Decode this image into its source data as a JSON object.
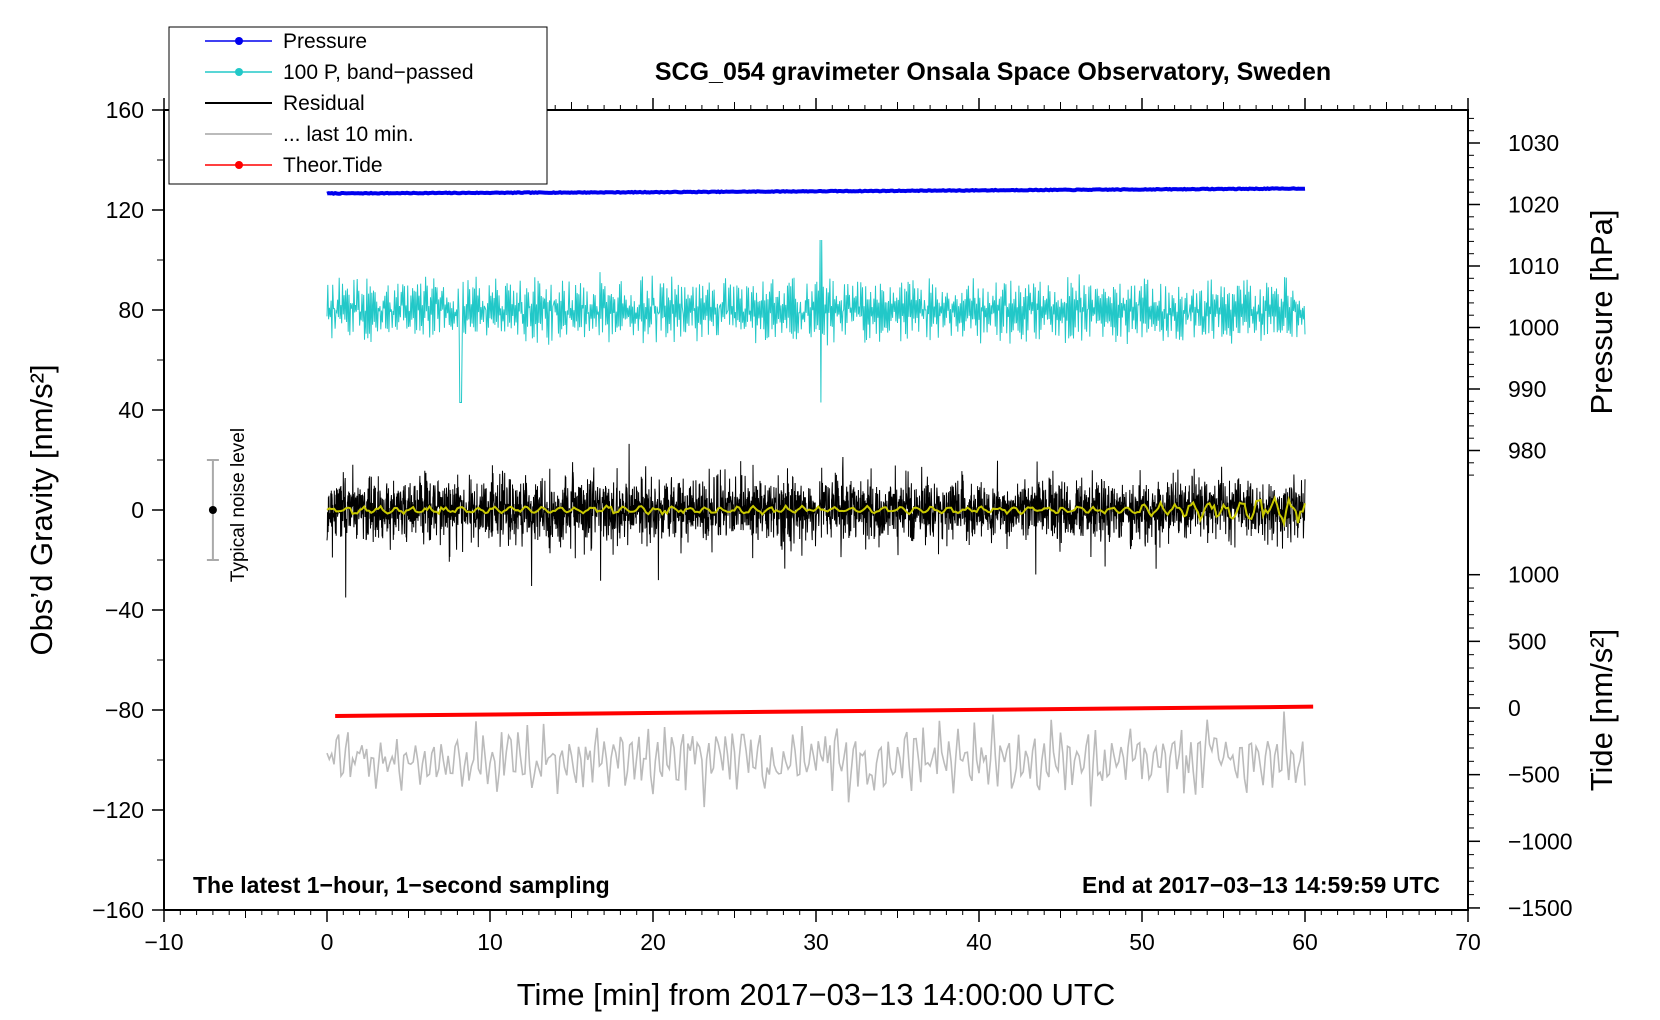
{
  "chart_data": {
    "type": "line",
    "title": "SCG_054 gravimeter Onsala Space Observatory, Sweden",
    "xlabel": "Time [min] from 2017−03−13 14:00:00 UTC",
    "ylabel_left": "Obs’d Gravity [nm/s²]",
    "ylabel_pressure": "Pressure [hPa]",
    "ylabel_tide": "Tide [nm/s²]",
    "xlim": [
      -10,
      70
    ],
    "ylim_left": [
      -160,
      160
    ],
    "x_ticks": [
      "−10",
      "0",
      "10",
      "20",
      "30",
      "40",
      "50",
      "60",
      "70"
    ],
    "y_ticks_left": [
      "160",
      "120",
      "80",
      "40",
      "0",
      "−40",
      "−80",
      "−120",
      "−160"
    ],
    "pressure_ticks": [
      "1030",
      "1020",
      "1010",
      "1000",
      "990",
      "980"
    ],
    "tide_ticks": [
      "1000",
      "500",
      "0",
      "−500",
      "−1000",
      "−1500"
    ],
    "note_left": "The latest 1−hour, 1−second sampling",
    "note_right": "End at 2017−03−13 14:59:59 UTC",
    "noise_label": "Typical noise level",
    "noise_bar": {
      "x": -7,
      "center": 0,
      "half_range": 20
    },
    "legend": [
      {
        "label": "Pressure",
        "color": "#0000ee",
        "marker": true
      },
      {
        "label": "100 P, band−passed",
        "color": "#22c8c8",
        "marker": true
      },
      {
        "label": "Residual",
        "color": "#000000",
        "marker": false
      },
      {
        "label": "... last 10 min.",
        "color": "#bbbbbb",
        "marker": false
      },
      {
        "label": "Theor.Tide",
        "color": "#ff0000",
        "marker": true
      }
    ],
    "series": [
      {
        "name": "Pressure",
        "color": "#0000ee",
        "x_range": [
          0,
          60
        ],
        "values_hpa": [
          1021.8,
          1022.0,
          1022.3,
          1022.6
        ],
        "plotted_offset_nms2": 128
      },
      {
        "name": "100 P, band−passed",
        "color": "#22c8c8",
        "x_range": [
          0,
          60
        ],
        "center_nms2": 80,
        "amplitude_nms2": 12,
        "peak_excursions_nms2": [
          43,
          108
        ]
      },
      {
        "name": "Residual",
        "color": "#000000",
        "x_range": [
          0,
          60
        ],
        "center_nms2": 0,
        "amplitude_nms2": 10,
        "extremes_nms2": [
          -35,
          33
        ]
      },
      {
        "name": "Residual smoothed",
        "color": "#c8c800",
        "x_range": [
          0,
          60
        ],
        "center_nms2": 0,
        "amplitude_nms2": 2
      },
      {
        "name": "... last 10 min.",
        "color": "#bbbbbb",
        "x_range": [
          0,
          60
        ],
        "center_nms2": -100,
        "amplitude_nms2": 10,
        "extremes_nms2": [
          -128,
          -69
        ]
      },
      {
        "name": "Theor.Tide",
        "color": "#ff0000",
        "x": [
          0.5,
          60.5
        ],
        "values_nms2": [
          -60,
          10
        ]
      }
    ]
  }
}
